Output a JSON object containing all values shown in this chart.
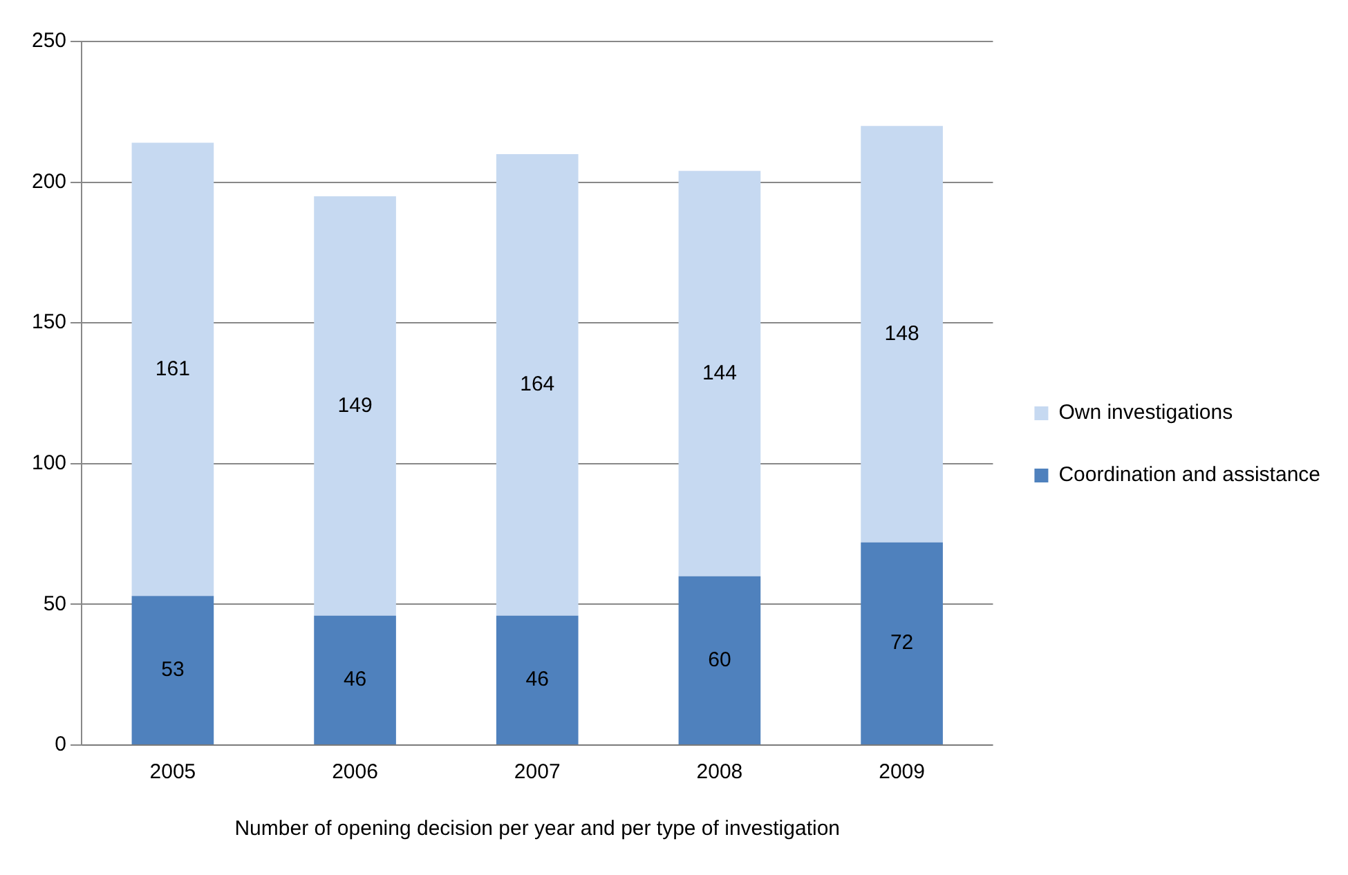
{
  "chart_data": {
    "type": "bar",
    "stacked": true,
    "xlabel": "Number of opening decision per year and per type of investigation",
    "categories": [
      "2005",
      "2006",
      "2007",
      "2008",
      "2009"
    ],
    "series": [
      {
        "name": "Coordination and assistance",
        "color": "#4f81bd",
        "values": [
          53,
          46,
          46,
          60,
          72
        ]
      },
      {
        "name": "Own investigations",
        "color": "#c6d9f1",
        "values": [
          161,
          149,
          164,
          144,
          148
        ]
      }
    ],
    "ylim": [
      0,
      250
    ],
    "yticks": [
      0,
      50,
      100,
      150,
      200,
      250
    ],
    "grid": "y",
    "legend": "right",
    "data_labels": true
  }
}
